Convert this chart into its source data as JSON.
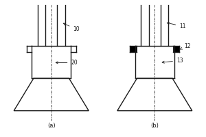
{
  "fig_width": 3.0,
  "fig_height": 2.0,
  "dpi": 100,
  "bg_color": "#ffffff",
  "line_color": "#1a1a1a",
  "fill_black": "#000000",
  "label_a": "(a)",
  "label_b": "(b)",
  "label_10": "10",
  "label_20": "20",
  "label_11": "11",
  "label_12": "12",
  "label_13": "13"
}
